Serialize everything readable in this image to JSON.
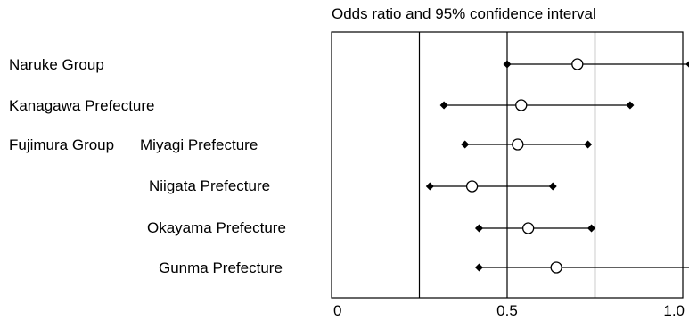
{
  "chart_data": {
    "type": "forest",
    "title": "Odds ratio and 95% confidence interval",
    "row_labels": [
      {
        "group": "Naruke Group",
        "site": ""
      },
      {
        "group": "",
        "site": "Kanagawa Prefecture"
      },
      {
        "group": "Fujimura Group",
        "site": "Miyagi Prefecture"
      },
      {
        "group": "",
        "site": "Niigata Prefecture"
      },
      {
        "group": "",
        "site": "Okayama Prefecture"
      },
      {
        "group": "",
        "site": "Gunma Prefecture"
      }
    ],
    "rows": [
      {
        "or": 0.7,
        "low": 0.5,
        "high": 1.02
      },
      {
        "or": 0.54,
        "low": 0.32,
        "high": 0.85
      },
      {
        "or": 0.53,
        "low": 0.38,
        "high": 0.73
      },
      {
        "or": 0.4,
        "low": 0.28,
        "high": 0.63
      },
      {
        "or": 0.56,
        "low": 0.42,
        "high": 0.74
      },
      {
        "or": 0.64,
        "low": 0.42,
        "high": 1.03
      }
    ],
    "xlim": [
      0,
      1.0
    ],
    "xticks": [
      {
        "value": 0,
        "label": "0"
      },
      {
        "value": 0.5,
        "label": "0.5"
      },
      {
        "value": 1.0,
        "label": "1.0"
      }
    ],
    "gridlines": [
      0.25,
      0.5,
      0.75
    ]
  }
}
